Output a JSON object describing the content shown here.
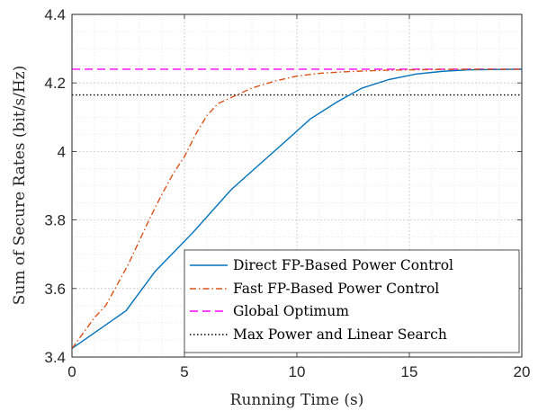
{
  "chart_data": {
    "type": "line",
    "xlabel": "Running Time (s)",
    "ylabel": "Sum of Secure Rates (bit/s/Hz)",
    "xlim": [
      0,
      20
    ],
    "ylim": [
      3.4,
      4.4
    ],
    "xticks": [
      0,
      5,
      10,
      15,
      20
    ],
    "yticks": [
      3.4,
      3.6,
      3.8,
      4.0,
      4.2,
      4.4
    ],
    "xtick_labels": [
      "0",
      "5",
      "10",
      "15",
      "20"
    ],
    "ytick_labels": [
      "3.4",
      "3.6",
      "3.8",
      "4",
      "4.2",
      "4.4"
    ],
    "grid": true,
    "minor_grid": true,
    "legend_position": "bottom-right",
    "series": [
      {
        "name": "Direct FP-Based Power Control",
        "color": "#0072BD",
        "style": "solid",
        "x": [
          0,
          1.2,
          2.4,
          3.7,
          5.4,
          7.1,
          8.3,
          9.5,
          10.6,
          11.8,
          12.9,
          14.1,
          15.3,
          16.5,
          17.6,
          18.8,
          20
        ],
        "y": [
          3.425,
          3.48,
          3.535,
          3.65,
          3.765,
          3.89,
          3.96,
          4.03,
          4.095,
          4.145,
          4.185,
          4.21,
          4.226,
          4.234,
          4.238,
          4.239,
          4.24
        ]
      },
      {
        "name": "Fast FP-Based Power Control",
        "color": "#D95319",
        "style": "dashdot",
        "x": [
          0,
          0.5,
          1.0,
          1.5,
          2.0,
          2.5,
          3.0,
          3.5,
          4.0,
          4.5,
          5.0,
          5.5,
          6.0,
          6.5,
          7.0,
          7.5,
          8.0,
          9.0,
          10.0,
          11.0,
          12.0,
          13.0,
          14.0,
          16.0,
          18.0,
          20.0
        ],
        "y": [
          3.425,
          3.47,
          3.515,
          3.55,
          3.61,
          3.67,
          3.74,
          3.81,
          3.875,
          3.935,
          3.985,
          4.05,
          4.105,
          4.14,
          4.155,
          4.17,
          4.185,
          4.205,
          4.22,
          4.228,
          4.232,
          4.235,
          4.237,
          4.239,
          4.24,
          4.24
        ]
      },
      {
        "name": "Global Optimum",
        "color": "#FF00FF",
        "style": "dashed",
        "x": [
          0,
          20
        ],
        "y": [
          4.24,
          4.24
        ]
      },
      {
        "name": "Max Power and Linear Search",
        "color": "#000000",
        "style": "dotted",
        "x": [
          0,
          20
        ],
        "y": [
          4.165,
          4.165
        ]
      }
    ]
  }
}
